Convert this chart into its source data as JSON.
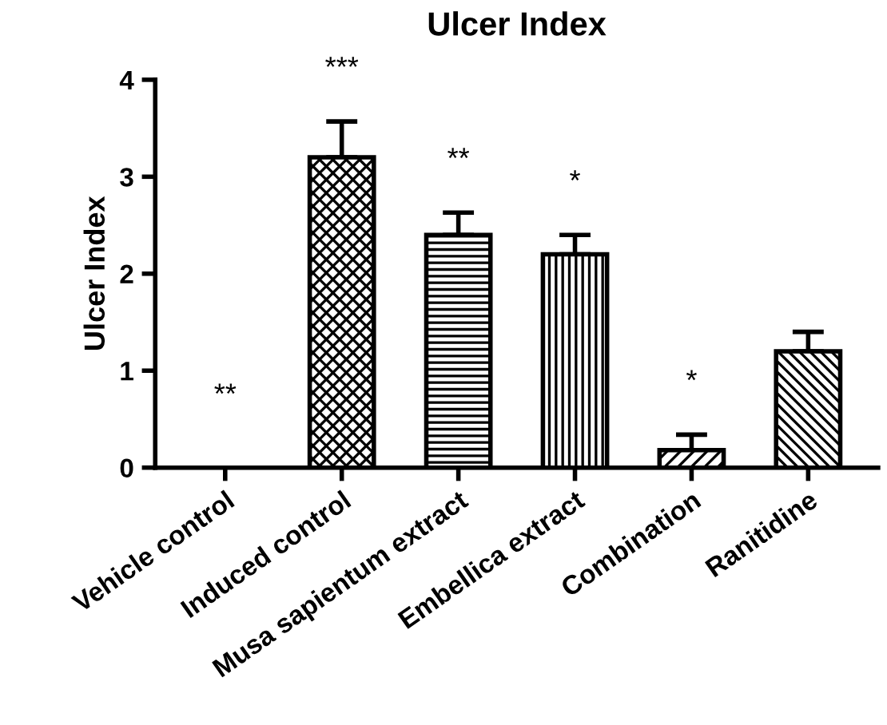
{
  "chart_data": {
    "type": "bar",
    "title": "Ulcer Index",
    "ylabel": "Ulcer Index",
    "categories": [
      "Vehicle control",
      "Induced control",
      "Musa sapientum extract",
      "Embellica extract",
      "Combination",
      "Ranitidine"
    ],
    "values": [
      0,
      3.2,
      2.4,
      2.2,
      0.18,
      1.2
    ],
    "errors": [
      null,
      0.37,
      0.23,
      0.2,
      0.16,
      0.2
    ],
    "color": "#000000",
    "ylim": [
      0,
      4
    ],
    "yticks": [
      0,
      1,
      2,
      3,
      4
    ],
    "grid": false,
    "legend": false,
    "annotations": [
      "**",
      "***",
      "**",
      "*",
      "*"
    ]
  }
}
